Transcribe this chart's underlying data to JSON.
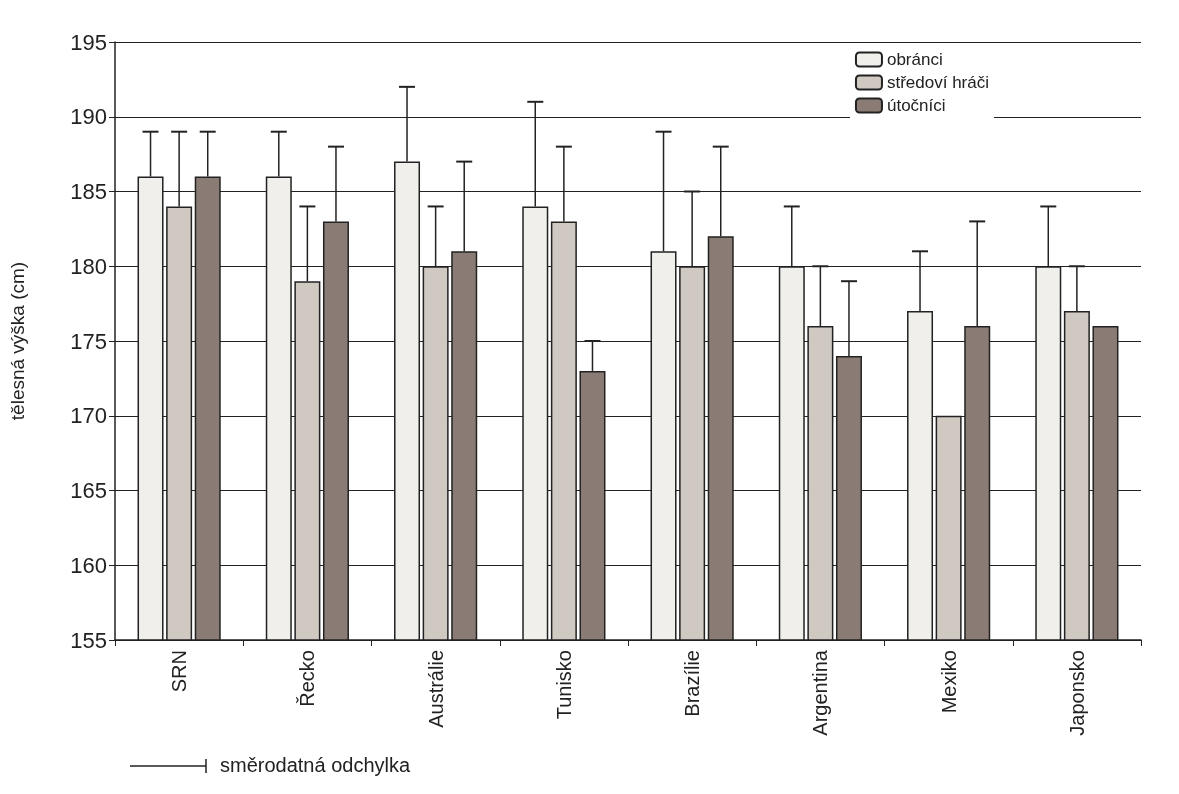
{
  "chart_data": {
    "type": "bar",
    "ylabel": "tělesná výška (cm)",
    "categories": [
      "SRN",
      "Řecko",
      "Austrálie",
      "Tunisko",
      "Brazílie",
      "Argentina",
      "Mexiko",
      "Japonsko"
    ],
    "series": [
      {
        "name": "obránci",
        "color": "#f0efec",
        "values": [
          186,
          186,
          187,
          184,
          181,
          180,
          177,
          180
        ],
        "errors": [
          3,
          3,
          5,
          7,
          8,
          4,
          4,
          4
        ]
      },
      {
        "name": "středoví hráči",
        "color": "#cfc9c2",
        "values": [
          184,
          179,
          180,
          183,
          180,
          176,
          170,
          177
        ],
        "errors": [
          5,
          5,
          4,
          5,
          5,
          4,
          null,
          3
        ]
      },
      {
        "name": "útočníci",
        "color": "#8a7c74",
        "values": [
          186,
          183,
          181,
          173,
          182,
          174,
          176,
          176
        ],
        "errors": [
          3,
          5,
          6,
          2,
          6,
          5,
          7,
          null
        ]
      }
    ],
    "ylim": [
      155,
      195
    ],
    "yticks": [
      155,
      160,
      165,
      170,
      175,
      180,
      185,
      190,
      195
    ],
    "grid": "y",
    "legend": "top right",
    "annotations": [
      "směrodatná odchylka"
    ]
  }
}
